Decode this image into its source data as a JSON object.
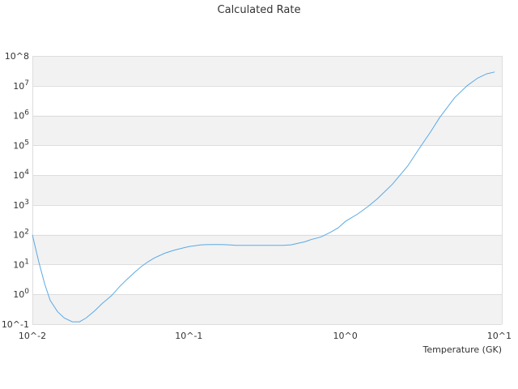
{
  "chart_data": {
    "type": "line",
    "title": "Calculated Rate",
    "xlabel": "Temperature (GK)",
    "ylabel": "",
    "x_scale": "log",
    "y_scale": "log",
    "xlim": [
      0.01,
      10
    ],
    "ylim": [
      0.1,
      100000000
    ],
    "x_ticks": [
      {
        "value": 0.01,
        "base": "10^-2",
        "sup": ""
      },
      {
        "value": 0.1,
        "base": "10^-1",
        "sup": ""
      },
      {
        "value": 1,
        "base": "10^0",
        "sup": ""
      },
      {
        "value": 10,
        "base": "10^1",
        "sup": ""
      }
    ],
    "y_ticks": [
      {
        "value": 0.1,
        "base": "10^-1",
        "sup": ""
      },
      {
        "value": 1,
        "base": "10",
        "sup": "0"
      },
      {
        "value": 10,
        "base": "10",
        "sup": "1"
      },
      {
        "value": 100,
        "base": "10",
        "sup": "2"
      },
      {
        "value": 1000,
        "base": "10",
        "sup": "3"
      },
      {
        "value": 10000,
        "base": "10",
        "sup": "4"
      },
      {
        "value": 100000,
        "base": "10",
        "sup": "5"
      },
      {
        "value": 1000000,
        "base": "10",
        "sup": "6"
      },
      {
        "value": 10000000,
        "base": "10",
        "sup": "7"
      },
      {
        "value": 100000000,
        "base": "10^8",
        "sup": ""
      }
    ],
    "alternate_bands": true,
    "grid": true,
    "legend": "none",
    "colors": {
      "line": "#5aa9e6",
      "band": "#f2f2f2",
      "grid": "#dddddd",
      "text": "#333333"
    },
    "series": [
      {
        "x": [
          0.01,
          0.011,
          0.012,
          0.013,
          0.0145,
          0.016,
          0.018,
          0.02,
          0.022,
          0.025,
          0.028,
          0.032,
          0.036,
          0.04,
          0.045,
          0.05,
          0.055,
          0.06,
          0.07,
          0.08,
          0.09,
          0.1,
          0.11,
          0.12,
          0.14,
          0.16,
          0.18,
          0.2,
          0.25,
          0.3,
          0.35,
          0.4,
          0.45,
          0.5,
          0.55,
          0.6,
          0.7,
          0.8,
          0.9,
          1.0,
          1.2,
          1.4,
          1.6,
          1.8,
          2.0,
          2.5,
          3.0,
          3.5,
          4.0,
          5.0,
          6.0,
          7.0,
          8.0,
          9.0
        ],
        "y": [
          100,
          12,
          2.2,
          0.63,
          0.26,
          0.16,
          0.12,
          0.12,
          0.16,
          0.28,
          0.5,
          0.9,
          1.8,
          3.1,
          5.5,
          8.8,
          12.5,
          16.5,
          24,
          30,
          35,
          40,
          43,
          46,
          47,
          47,
          46,
          44,
          44,
          44,
          44,
          44,
          46,
          52,
          58,
          68,
          85,
          120,
          170,
          280,
          500,
          900,
          1600,
          2900,
          5000,
          20000,
          85000,
          280000,
          850000,
          4000000,
          10000000,
          18000000,
          25000000,
          29000000
        ]
      }
    ]
  }
}
